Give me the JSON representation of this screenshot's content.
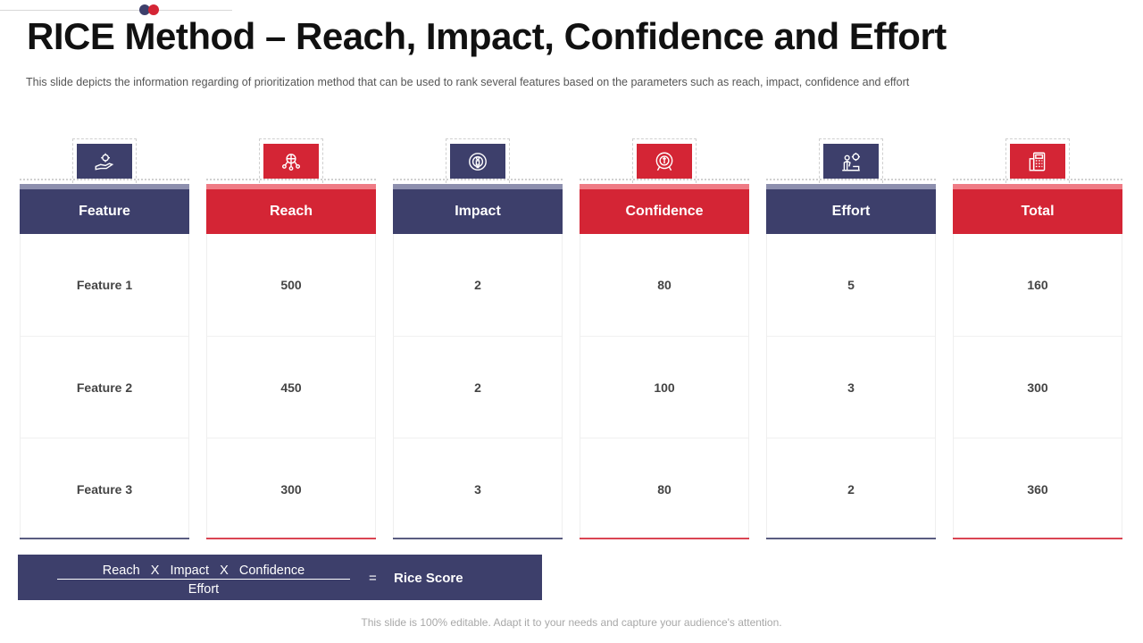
{
  "slide": {
    "title": "RICE Method – Reach, Impact, Confidence and Effort",
    "subtitle": "This slide depicts the information  regarding  of prioritization  method that can be used to rank  several  features  based on the parameters  such as reach,  impact,  confidence  and effort",
    "footer": "This slide is 100% editable. Adapt it to your needs and capture your audience's attention."
  },
  "colors": {
    "navy": "#3d3f6b",
    "red": "#d42535"
  },
  "table": {
    "columns": [
      {
        "label": "Feature",
        "color": "navy",
        "icon": "hand-gear-icon"
      },
      {
        "label": "Reach",
        "color": "red",
        "icon": "people-network-icon"
      },
      {
        "label": "Impact",
        "color": "navy",
        "icon": "target-person-icon"
      },
      {
        "label": "Confidence",
        "color": "red",
        "icon": "medal-badge-icon"
      },
      {
        "label": "Effort",
        "color": "navy",
        "icon": "person-gear-icon"
      },
      {
        "label": "Total",
        "color": "red",
        "icon": "calculator-icon"
      }
    ],
    "rows": [
      [
        "Feature 1",
        "500",
        "2",
        "80",
        "5",
        "160"
      ],
      [
        "Feature 2",
        "450",
        "2",
        "100",
        "3",
        "300"
      ],
      [
        "Feature 3",
        "300",
        "3",
        "80",
        "2",
        "360"
      ]
    ]
  },
  "formula": {
    "numerator": "Reach   X   Impact   X   Confidence",
    "denominator": "Effort",
    "equals": "=",
    "result": "Rice Score"
  }
}
